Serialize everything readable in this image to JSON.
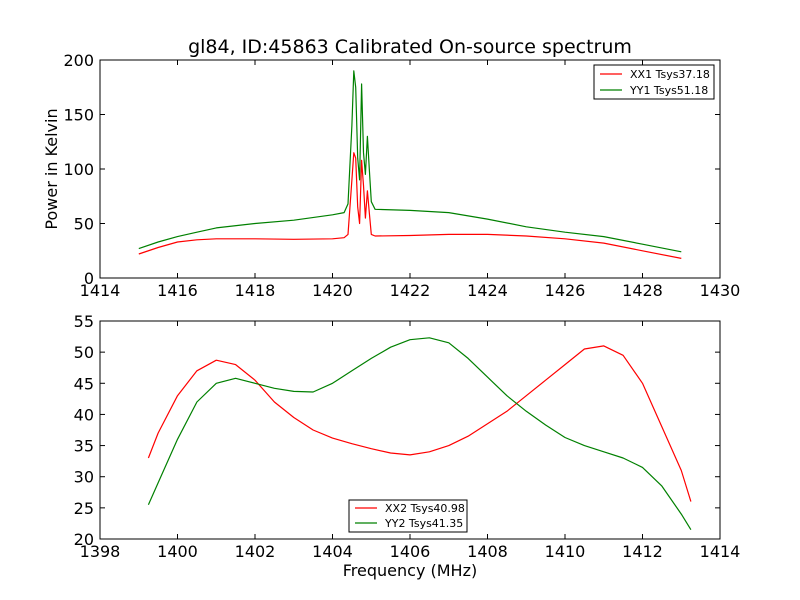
{
  "chart_data": [
    {
      "type": "line",
      "title": "gl84, ID:45863 Calibrated On-source spectrum",
      "xlabel": "",
      "ylabel": "Power in Kelvin",
      "xlim": [
        1414,
        1430
      ],
      "ylim": [
        0,
        200
      ],
      "xticks": [
        "1414",
        "1416",
        "1418",
        "1420",
        "1422",
        "1424",
        "1426",
        "1428",
        "1430"
      ],
      "yticks": [
        "0",
        "50",
        "100",
        "150",
        "200"
      ],
      "grid": false,
      "legend_position": "top-right",
      "series": [
        {
          "name": "XX1 Tsys37.18",
          "color": "#ff0000",
          "x": [
            1415.0,
            1415.5,
            1416.0,
            1416.5,
            1417.0,
            1418.0,
            1419.0,
            1420.0,
            1420.3,
            1420.4,
            1420.5,
            1420.55,
            1420.6,
            1420.65,
            1420.7,
            1420.75,
            1420.8,
            1420.85,
            1420.9,
            1420.95,
            1421.0,
            1421.1,
            1422.0,
            1423.0,
            1424.0,
            1425.0,
            1426.0,
            1427.0,
            1428.0,
            1429.0
          ],
          "values": [
            22,
            28,
            33,
            35,
            36,
            36,
            35.5,
            36,
            37,
            40,
            90,
            115,
            110,
            65,
            50,
            108,
            85,
            55,
            80,
            60,
            40,
            38.5,
            39,
            40,
            40,
            38.5,
            36,
            32,
            25,
            18
          ]
        },
        {
          "name": "YY1 Tsys51.18",
          "color": "#008000",
          "x": [
            1415.0,
            1415.5,
            1416.0,
            1416.5,
            1417.0,
            1418.0,
            1419.0,
            1420.0,
            1420.3,
            1420.4,
            1420.5,
            1420.55,
            1420.6,
            1420.65,
            1420.7,
            1420.75,
            1420.8,
            1420.85,
            1420.9,
            1420.95,
            1421.0,
            1421.1,
            1422.0,
            1423.0,
            1424.0,
            1425.0,
            1426.0,
            1427.0,
            1428.0,
            1429.0
          ],
          "values": [
            27,
            33,
            38,
            42,
            46,
            50,
            53,
            58,
            60,
            68,
            140,
            190,
            175,
            110,
            90,
            178,
            115,
            95,
            130,
            100,
            70,
            63,
            62,
            60,
            54,
            47,
            42,
            38,
            31,
            24
          ]
        }
      ]
    },
    {
      "type": "line",
      "title": "",
      "xlabel": "Frequency (MHz)",
      "ylabel": "",
      "xlim": [
        1398,
        1414
      ],
      "ylim": [
        20,
        55
      ],
      "xticks": [
        "1398",
        "1400",
        "1402",
        "1404",
        "1406",
        "1408",
        "1410",
        "1412",
        "1414"
      ],
      "yticks": [
        "20",
        "25",
        "30",
        "35",
        "40",
        "45",
        "50",
        "55"
      ],
      "grid": false,
      "legend_position": "bottom-center",
      "series": [
        {
          "name": "XX2 Tsys40.98",
          "color": "#ff0000",
          "x": [
            1399.25,
            1399.5,
            1400.0,
            1400.5,
            1401.0,
            1401.5,
            1402.0,
            1402.5,
            1403.0,
            1403.5,
            1404.0,
            1404.5,
            1405.0,
            1405.5,
            1406.0,
            1406.5,
            1407.0,
            1407.5,
            1408.0,
            1408.5,
            1409.0,
            1409.5,
            1410.0,
            1410.5,
            1411.0,
            1411.5,
            1412.0,
            1412.5,
            1413.0,
            1413.25
          ],
          "values": [
            33,
            37,
            43,
            47,
            48.7,
            48,
            45.5,
            42,
            39.5,
            37.5,
            36.2,
            35.3,
            34.5,
            33.8,
            33.5,
            34,
            35,
            36.5,
            38.5,
            40.5,
            43,
            45.5,
            48,
            50.5,
            51,
            49.5,
            45,
            38,
            31,
            26
          ]
        },
        {
          "name": "YY2 Tsys41.35",
          "color": "#008000",
          "x": [
            1399.25,
            1399.5,
            1400.0,
            1400.5,
            1401.0,
            1401.5,
            1402.0,
            1402.5,
            1403.0,
            1403.5,
            1404.0,
            1404.5,
            1405.0,
            1405.5,
            1406.0,
            1406.5,
            1407.0,
            1407.5,
            1408.0,
            1408.5,
            1409.0,
            1409.5,
            1410.0,
            1410.5,
            1411.0,
            1411.5,
            1412.0,
            1412.5,
            1413.0,
            1413.25
          ],
          "values": [
            25.5,
            29,
            36,
            42,
            45,
            45.8,
            45,
            44.2,
            43.7,
            43.6,
            45,
            47,
            49,
            50.8,
            52,
            52.3,
            51.5,
            49,
            46,
            43,
            40.5,
            38.3,
            36.3,
            35,
            34,
            33,
            31.5,
            28.5,
            24,
            21.5
          ]
        }
      ]
    }
  ]
}
